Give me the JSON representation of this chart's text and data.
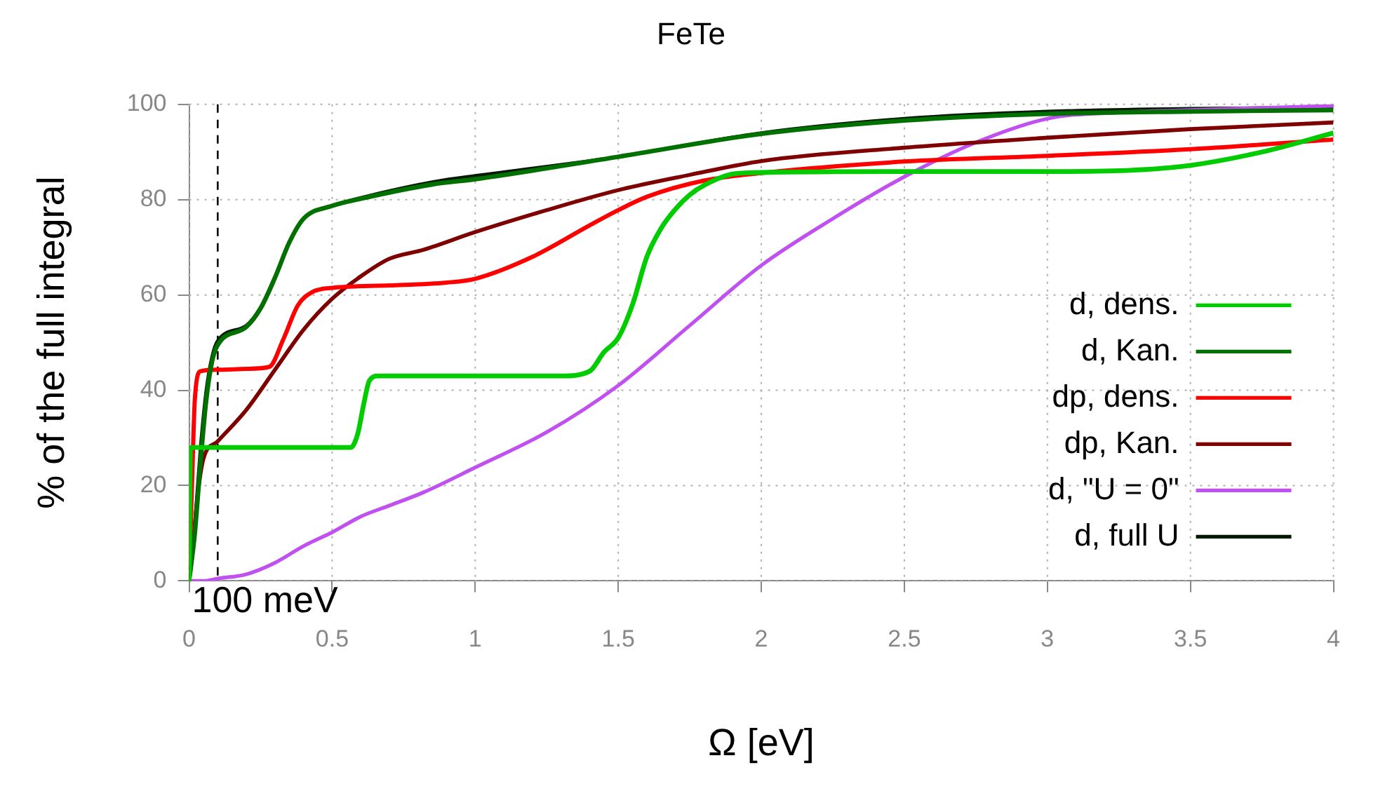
{
  "chart_data": {
    "type": "line",
    "title": "FeTe",
    "xlabel": "Ω [eV]",
    "ylabel": "% of the full integral",
    "xlim": [
      0,
      4
    ],
    "xticks": [
      0,
      0.5,
      1,
      1.5,
      2,
      2.5,
      3,
      3.5,
      4
    ],
    "ylim": [
      0,
      100
    ],
    "yticks": [
      0,
      20,
      40,
      60,
      80,
      100
    ],
    "grid": true,
    "legend": "bottom right",
    "marker": "none",
    "line_style": "solid",
    "ref_lines": [
      {
        "axis": "x",
        "value": 0.1,
        "label": "100 meV",
        "color": "#000000",
        "line_style": "dashed"
      }
    ],
    "series": [
      {
        "name": "d, dens.",
        "color": "#00cc00",
        "x": [
          0,
          0.005,
          0.3,
          0.565,
          0.59,
          0.61,
          0.63,
          0.66,
          0.7,
          1.0,
          1.3,
          1.4,
          1.45,
          1.5,
          1.55,
          1.6,
          1.65,
          1.7,
          1.75,
          1.8,
          1.9,
          2.0,
          2.5,
          3.0,
          3.3,
          3.5,
          3.75,
          4.0
        ],
        "values": [
          0,
          28,
          28,
          28,
          31,
          37,
          42,
          43,
          43,
          43,
          43,
          44,
          48,
          51,
          58,
          68,
          74,
          78,
          81,
          83,
          85.4,
          85.7,
          85.9,
          85.9,
          86.2,
          87.2,
          90,
          94
        ]
      },
      {
        "name": "d, Kan.",
        "color": "#007000",
        "x": [
          0,
          0.02,
          0.04,
          0.06,
          0.08,
          0.1,
          0.2,
          0.25,
          0.3,
          0.35,
          0.4,
          0.5,
          0.6,
          0.85,
          1.0,
          1.5,
          2.0,
          2.5,
          3.0,
          3.5,
          4.0
        ],
        "values": [
          0,
          10,
          25,
          38,
          46,
          49.5,
          53.3,
          57.2,
          63.6,
          71,
          76,
          78.7,
          80.2,
          83.2,
          84.3,
          89,
          93.8,
          96.6,
          98,
          98.5,
          98.8
        ]
      },
      {
        "name": "dp, dens.",
        "color": "#ff0000",
        "x": [
          0,
          0.01,
          0.02,
          0.04,
          0.1,
          0.2,
          0.28,
          0.33,
          0.38,
          0.43,
          0.5,
          0.7,
          0.9,
          1.0,
          1.2,
          1.4,
          1.5,
          1.6,
          1.8,
          2.0,
          2.5,
          3.0,
          3.5,
          4.0
        ],
        "values": [
          0,
          20,
          38,
          44,
          44.3,
          44.5,
          44.9,
          50.8,
          57.8,
          60.6,
          61.5,
          62,
          62.6,
          63.4,
          68,
          74.6,
          77.8,
          80.6,
          84,
          85.6,
          88,
          89.2,
          90.6,
          92.6
        ]
      },
      {
        "name": "dp, Kan.",
        "color": "#7f0000",
        "x": [
          0,
          0.01,
          0.03,
          0.05,
          0.1,
          0.2,
          0.3,
          0.4,
          0.5,
          0.6,
          0.7,
          0.82,
          1.0,
          1.25,
          1.5,
          1.75,
          2.0,
          2.5,
          3.0,
          3.5,
          4.0
        ],
        "values": [
          0,
          5,
          18,
          25.6,
          29.3,
          35.9,
          44.3,
          52.7,
          59.2,
          63.9,
          67.6,
          69.5,
          73.2,
          77.8,
          82,
          85.2,
          88.1,
          90.9,
          93,
          94.8,
          96.2
        ]
      },
      {
        "name": "d, \"U = 0\"",
        "color": "#c050f0",
        "x": [
          0,
          0.05,
          0.1,
          0.2,
          0.3,
          0.4,
          0.5,
          0.6,
          0.7,
          0.82,
          1.0,
          1.25,
          1.5,
          1.75,
          2.0,
          2.25,
          2.5,
          2.75,
          3.0,
          3.25,
          3.5,
          4.0
        ],
        "values": [
          0,
          0,
          0.5,
          1.4,
          3.8,
          7.3,
          10.2,
          13.5,
          15.8,
          18.6,
          23.8,
          31.2,
          41,
          53.6,
          66.2,
          76,
          84.8,
          92,
          97,
          98.3,
          98.8,
          99.7
        ]
      },
      {
        "name": "d, full U",
        "color": "#001a00",
        "x": [
          0,
          0.02,
          0.04,
          0.06,
          0.08,
          0.1,
          0.2,
          0.25,
          0.3,
          0.35,
          0.4,
          0.5,
          0.6,
          0.85,
          1.0,
          1.5,
          2.0,
          2.5,
          3.0,
          3.5,
          4.0
        ],
        "values": [
          0,
          12,
          28,
          40,
          47,
          50.4,
          53.6,
          57.4,
          63.8,
          71,
          76,
          78.7,
          80.4,
          83.7,
          85,
          89,
          94,
          97,
          98.5,
          99.1,
          99.4
        ]
      }
    ]
  }
}
